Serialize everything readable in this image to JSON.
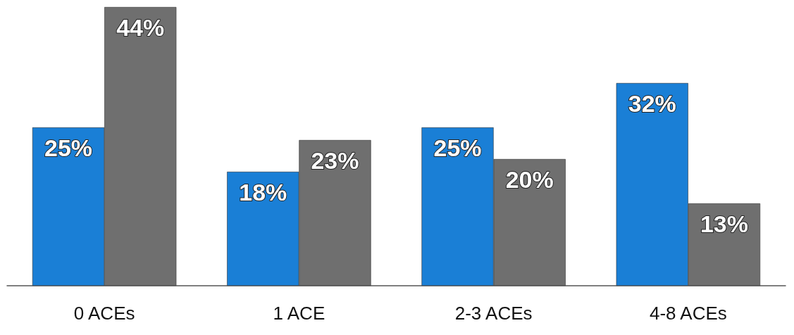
{
  "chart_data": {
    "type": "bar",
    "categories": [
      "0 ACEs",
      "1 ACE",
      "2-3 ACEs",
      "4-8 ACEs"
    ],
    "series": [
      {
        "color": "#1a7fd6",
        "values": [
          25,
          18,
          25,
          32
        ],
        "value_labels": [
          "25%",
          "18%",
          "25%",
          "32%"
        ]
      },
      {
        "color": "#6f6f6f",
        "values": [
          44,
          23,
          20,
          13
        ],
        "value_labels": [
          "44%",
          "23%",
          "20%",
          "13%"
        ]
      }
    ]
  }
}
